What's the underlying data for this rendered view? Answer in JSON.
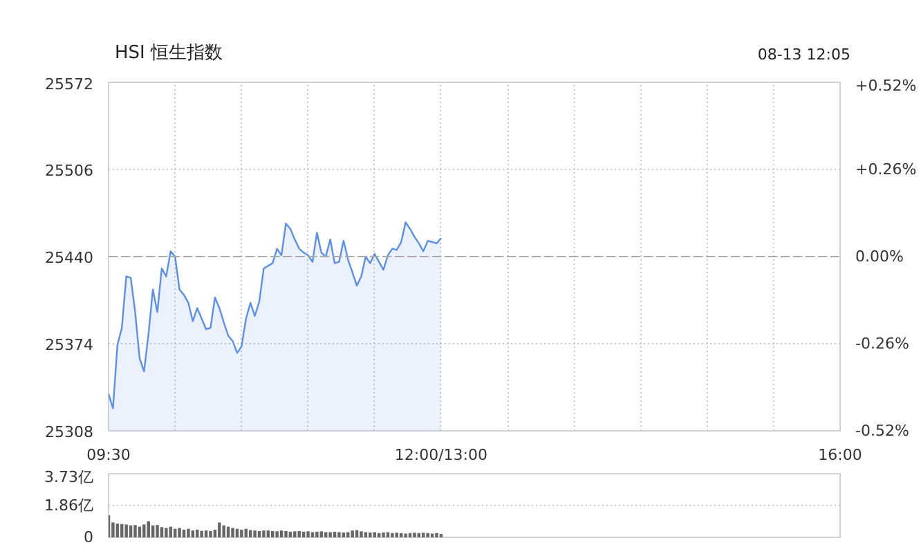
{
  "chart_data": [
    {
      "type": "area",
      "title": "HSI 恒生指数",
      "annotations": [
        "08-13 12:05"
      ],
      "categories": [
        "09:30",
        null,
        null,
        null,
        null,
        null,
        null,
        null,
        null,
        null,
        null,
        null,
        null,
        null,
        null,
        null,
        null,
        null,
        null,
        null,
        null,
        null,
        null,
        null,
        null,
        null,
        null,
        null,
        null,
        null,
        null,
        null,
        null,
        null,
        null,
        null,
        null,
        null,
        null,
        null,
        null,
        null,
        null,
        null,
        null,
        null,
        null,
        null,
        null,
        null,
        null,
        null,
        null,
        null,
        null,
        null,
        null,
        null,
        null,
        null,
        null,
        null,
        null,
        null,
        null,
        null,
        null,
        null,
        null,
        null,
        null,
        null,
        null,
        null,
        null,
        "12:00/13:00",
        null,
        null,
        null,
        null,
        null,
        null,
        null,
        null,
        null,
        null,
        null,
        null,
        null,
        null,
        null,
        null,
        null,
        null,
        null,
        null,
        null,
        null,
        null,
        null,
        null,
        null,
        null,
        null,
        null,
        null,
        null,
        null,
        null,
        null,
        null,
        null,
        null,
        null,
        null,
        null,
        null,
        null,
        null,
        null,
        null,
        null,
        null,
        null,
        null,
        null,
        null,
        null,
        null,
        null,
        null,
        null,
        null,
        null,
        null,
        null,
        null,
        null,
        null,
        null,
        null,
        null,
        null,
        null,
        null,
        null,
        null,
        null,
        null,
        null,
        null,
        null,
        null,
        null,
        null,
        null,
        null,
        null,
        null,
        null,
        null,
        null,
        null,
        null,
        null,
        "16:00"
      ],
      "series": [
        {
          "color": "#5a8ff0",
          "values": [
            25336,
            25325,
            25373,
            25386,
            25425,
            25424,
            25398,
            25363,
            25353,
            25381,
            25415,
            25398,
            25431,
            25425,
            25444,
            25440,
            25415,
            25411,
            25405,
            25391,
            25401,
            25393,
            25385,
            25386,
            25409,
            25401,
            25390,
            25380,
            25376,
            25367,
            25372,
            25393,
            25405,
            25395,
            25406,
            25431,
            25433,
            25435,
            25446,
            25441,
            25465,
            25461,
            25453,
            25446,
            25443,
            25441,
            25436,
            25458,
            25443,
            25440,
            25453,
            25435,
            25436,
            25452,
            25438,
            25428,
            25418,
            25425,
            25440,
            25435,
            25442,
            25436,
            25430,
            25441,
            25446,
            25445,
            25451,
            25466,
            25461,
            25455,
            25450,
            25444,
            25452,
            25451,
            25450,
            25454,
            null,
            null,
            null,
            null,
            null,
            null,
            null,
            null,
            null,
            null,
            null,
            null,
            null,
            null,
            null,
            null,
            null,
            null,
            null,
            null,
            null,
            null,
            null,
            null,
            null,
            null,
            null,
            null,
            null,
            null,
            null,
            null,
            null,
            null,
            null,
            null,
            null,
            null,
            null,
            null,
            null,
            null,
            null,
            null,
            null,
            null,
            null,
            null,
            null,
            null,
            null,
            null,
            null,
            null,
            null,
            null,
            null,
            null,
            null,
            null,
            null,
            null,
            null,
            null,
            null,
            null,
            null,
            null,
            null,
            null,
            null,
            null,
            null,
            null,
            null,
            null,
            null,
            null,
            null,
            null,
            null,
            null,
            null,
            null,
            null,
            null,
            null,
            null,
            null,
            null
          ]
        }
      ],
      "ylim": [
        25308,
        25572
      ],
      "yticks": [
        25308,
        25374,
        25440,
        25506,
        25572
      ],
      "y2lim": [
        -0.52,
        0.52
      ],
      "y2ticks": [
        {
          "value": -0.52,
          "label": "-0.52%"
        },
        {
          "value": -0.26,
          "label": "-0.26%"
        },
        {
          "value": 0,
          "label": "0.00%"
        },
        {
          "value": 0.26,
          "label": "+0.26%"
        },
        {
          "value": 0.52,
          "label": "+0.52%"
        }
      ],
      "ref_lines": [
        {
          "axis": "y",
          "value": 25440,
          "color": "#aaaaaa",
          "line_style": "dashed"
        }
      ],
      "grid": true,
      "line_style": "solid"
    },
    {
      "type": "bar",
      "categories": [
        null,
        null,
        null,
        null,
        null,
        null,
        null,
        null,
        null,
        null,
        null,
        null,
        null,
        null,
        null,
        null,
        null,
        null,
        null,
        null,
        null,
        null,
        null,
        null,
        null,
        null,
        null,
        null,
        null,
        null,
        null,
        null,
        null,
        null,
        null,
        null,
        null,
        null,
        null,
        null,
        null,
        null,
        null,
        null,
        null,
        null,
        null,
        null,
        null,
        null,
        null,
        null,
        null,
        null,
        null,
        null,
        null,
        null,
        null,
        null,
        null,
        null,
        null,
        null,
        null,
        null,
        null,
        null,
        null,
        null,
        null,
        null,
        null,
        null,
        null,
        null,
        null,
        null,
        null,
        null,
        null,
        null,
        null,
        null,
        null,
        null,
        null,
        null,
        null,
        null,
        null,
        null,
        null,
        null,
        null,
        null,
        null,
        null,
        null,
        null,
        null,
        null,
        null,
        null,
        null,
        null,
        null,
        null,
        null,
        null,
        null,
        null,
        null,
        null,
        null,
        null,
        null,
        null,
        null,
        null,
        null,
        null,
        null,
        null,
        null,
        null,
        null,
        null,
        null,
        null,
        null,
        null,
        null,
        null,
        null,
        null,
        null,
        null,
        null,
        null,
        null,
        null,
        null,
        null,
        null,
        null,
        null,
        null,
        null,
        null,
        null,
        null,
        null,
        null,
        null,
        null,
        null,
        null,
        null,
        null,
        null,
        null,
        null,
        null,
        null,
        null
      ],
      "series": [
        {
          "color": "#666666",
          "values": [
            1.29,
            0.87,
            0.8,
            0.78,
            0.75,
            0.7,
            0.72,
            0.62,
            0.75,
            0.94,
            0.7,
            0.72,
            0.6,
            0.55,
            0.62,
            0.5,
            0.55,
            0.45,
            0.5,
            0.4,
            0.45,
            0.38,
            0.4,
            0.37,
            0.45,
            0.87,
            0.7,
            0.62,
            0.55,
            0.5,
            0.45,
            0.5,
            0.42,
            0.4,
            0.37,
            0.4,
            0.4,
            0.37,
            0.35,
            0.4,
            0.37,
            0.33,
            0.35,
            0.37,
            0.33,
            0.35,
            0.3,
            0.33,
            0.35,
            0.3,
            0.3,
            0.32,
            0.3,
            0.28,
            0.3,
            0.4,
            0.42,
            0.35,
            0.3,
            0.28,
            0.3,
            0.25,
            0.28,
            0.3,
            0.25,
            0.27,
            0.25,
            0.22,
            0.25,
            0.27,
            0.25,
            0.27,
            0.25,
            0.22,
            0.25,
            0.2,
            null,
            null,
            null,
            null,
            null,
            null,
            null,
            null,
            null,
            null,
            null,
            null,
            null,
            null,
            null,
            null,
            null,
            null,
            null,
            null,
            null,
            null,
            null,
            null,
            null,
            null,
            null,
            null,
            null,
            null,
            null,
            null,
            null,
            null,
            null,
            null,
            null,
            null,
            null,
            null,
            null,
            null,
            null,
            null,
            null,
            null,
            null,
            null,
            null,
            null,
            null,
            null,
            null,
            null,
            null,
            null,
            null,
            null,
            null,
            null,
            null,
            null,
            null,
            null,
            null,
            null,
            null,
            null,
            null,
            null,
            null,
            null,
            null,
            null,
            null,
            null,
            null,
            null,
            null,
            null,
            null,
            null,
            null,
            null,
            null,
            null,
            null,
            null,
            null,
            null
          ]
        }
      ],
      "ylim": [
        0,
        3.73
      ],
      "yticks": [
        0,
        {
          "value": 1.86,
          "label": "1.86亿"
        },
        {
          "value": 3.73,
          "label": "3.73亿"
        }
      ],
      "tick_labels": "y",
      "grid": "y"
    }
  ]
}
